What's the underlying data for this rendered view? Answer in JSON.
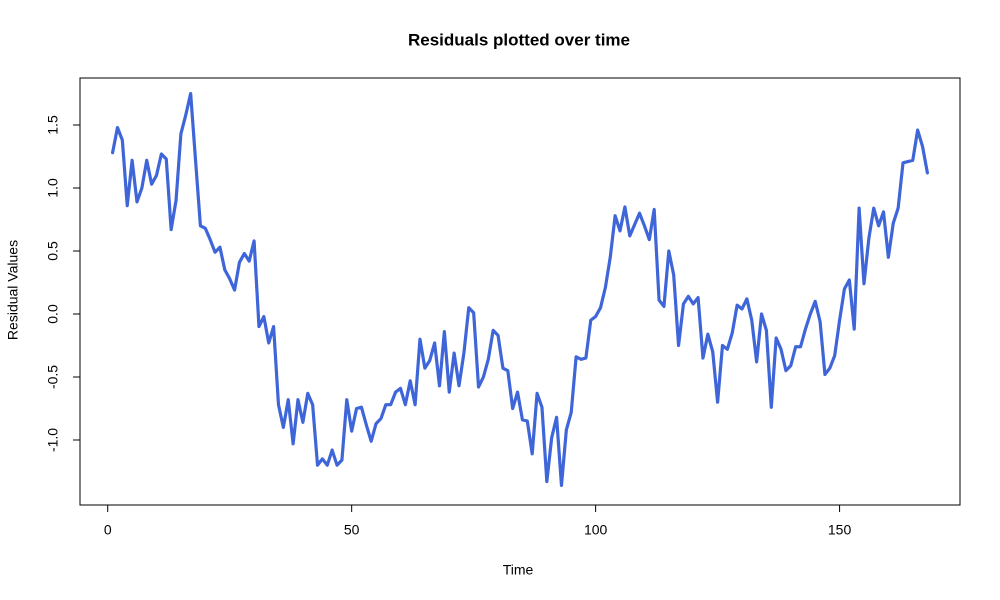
{
  "chart_data": {
    "type": "line",
    "title": "Residuals plotted over time",
    "x_label": "Time",
    "y_label": "Residual Values",
    "x": [
      1,
      2,
      3,
      4,
      5,
      6,
      7,
      8,
      9,
      10,
      11,
      12,
      13,
      14,
      15,
      16,
      17,
      18,
      19,
      20,
      21,
      22,
      23,
      24,
      25,
      26,
      27,
      28,
      29,
      30,
      31,
      32,
      33,
      34,
      35,
      36,
      37,
      38,
      39,
      40,
      41,
      42,
      43,
      44,
      45,
      46,
      47,
      48,
      49,
      50,
      51,
      52,
      53,
      54,
      55,
      56,
      57,
      58,
      59,
      60,
      61,
      62,
      63,
      64,
      65,
      66,
      67,
      68,
      69,
      70,
      71,
      72,
      73,
      74,
      75,
      76,
      77,
      78,
      79,
      80,
      81,
      82,
      83,
      84,
      85,
      86,
      87,
      88,
      89,
      90,
      91,
      92,
      93,
      94,
      95,
      96,
      97,
      98,
      99,
      100,
      101,
      102,
      103,
      104,
      105,
      106,
      107,
      108,
      109,
      110,
      111,
      112,
      113,
      114,
      115,
      116,
      117,
      118,
      119,
      120,
      121,
      122,
      123,
      124,
      125,
      126,
      127,
      128,
      129,
      130,
      131,
      132,
      133,
      134,
      135,
      136,
      137,
      138,
      139,
      140,
      141,
      142,
      143,
      144,
      145,
      146,
      147,
      148,
      149,
      150,
      151,
      152,
      153,
      154,
      155,
      156,
      157,
      158,
      159,
      160,
      161,
      162,
      163,
      164,
      165,
      166,
      167,
      168
    ],
    "values": [
      1.28,
      1.48,
      1.38,
      0.86,
      1.22,
      0.89,
      1.0,
      1.22,
      1.03,
      1.1,
      1.27,
      1.23,
      0.67,
      0.9,
      1.43,
      1.58,
      1.75,
      1.22,
      0.7,
      0.68,
      0.59,
      0.49,
      0.53,
      0.35,
      0.28,
      0.19,
      0.41,
      0.48,
      0.42,
      0.58,
      -0.1,
      -0.02,
      -0.23,
      -0.1,
      -0.72,
      -0.9,
      -0.68,
      -1.03,
      -0.68,
      -0.86,
      -0.63,
      -0.72,
      -1.2,
      -1.15,
      -1.2,
      -1.08,
      -1.2,
      -1.16,
      -0.68,
      -0.93,
      -0.75,
      -0.74,
      -0.88,
      -1.01,
      -0.87,
      -0.83,
      -0.72,
      -0.72,
      -0.62,
      -0.59,
      -0.72,
      -0.53,
      -0.72,
      -0.2,
      -0.43,
      -0.37,
      -0.23,
      -0.57,
      -0.14,
      -0.62,
      -0.31,
      -0.57,
      -0.31,
      0.05,
      0.01,
      -0.58,
      -0.5,
      -0.36,
      -0.13,
      -0.17,
      -0.43,
      -0.45,
      -0.75,
      -0.62,
      -0.84,
      -0.85,
      -1.11,
      -0.63,
      -0.74,
      -1.33,
      -0.98,
      -0.82,
      -1.36,
      -0.92,
      -0.78,
      -0.34,
      -0.36,
      -0.35,
      -0.05,
      -0.02,
      0.05,
      0.21,
      0.45,
      0.78,
      0.66,
      0.85,
      0.62,
      0.71,
      0.8,
      0.7,
      0.59,
      0.83,
      0.11,
      0.06,
      0.5,
      0.31,
      -0.25,
      0.08,
      0.14,
      0.08,
      0.13,
      -0.35,
      -0.16,
      -0.3,
      -0.7,
      -0.25,
      -0.28,
      -0.15,
      0.07,
      0.04,
      0.12,
      -0.05,
      -0.38,
      0.0,
      -0.13,
      -0.74,
      -0.19,
      -0.28,
      -0.45,
      -0.41,
      -0.26,
      -0.26,
      -0.12,
      0.0,
      0.1,
      -0.06,
      -0.48,
      -0.43,
      -0.33,
      -0.05,
      0.2,
      0.27,
      -0.12,
      0.84,
      0.24,
      0.6,
      0.84,
      0.7,
      0.81,
      0.45,
      0.72,
      0.84,
      1.2,
      1.21,
      1.22,
      1.46,
      1.33,
      1.12
    ],
    "color": "#3f66d9",
    "xlim": [
      -5.68,
      174.68
    ],
    "xticks": [
      0,
      50,
      100,
      150
    ],
    "ylim": [
      -1.516,
      1.873
    ],
    "yticks": [
      {
        "value": -1,
        "label": "-1.0"
      },
      -0.5,
      {
        "value": 0,
        "label": "0.0"
      },
      0.5,
      {
        "value": 1,
        "label": "1.0"
      },
      1.5
    ]
  }
}
